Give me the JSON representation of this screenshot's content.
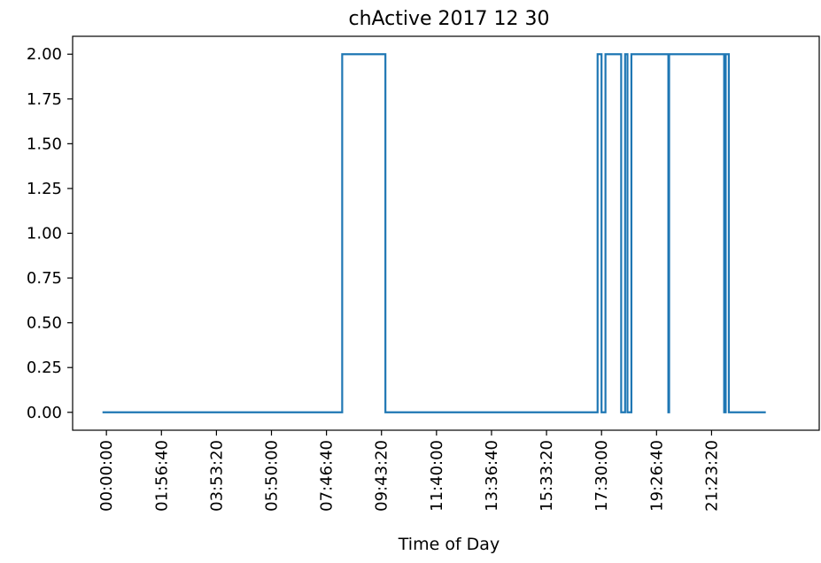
{
  "chart_data": {
    "type": "line",
    "title": "chActive 2017 12 30",
    "xlabel": "Time of Day",
    "ylabel": "",
    "x_tick_labels": [
      "00:00:00",
      "01:56:40",
      "03:53:20",
      "05:50:00",
      "07:46:40",
      "09:43:20",
      "11:40:00",
      "13:36:40",
      "15:33:20",
      "17:30:00",
      "19:26:40",
      "21:23:20"
    ],
    "x_tick_seconds": [
      0,
      7000,
      14000,
      21000,
      28000,
      35000,
      42000,
      49000,
      56000,
      63000,
      70000,
      77000
    ],
    "x_unit": "seconds since midnight",
    "xlim": [
      -4300,
      90700
    ],
    "y_tick_labels": [
      "0.00",
      "0.25",
      "0.50",
      "0.75",
      "1.00",
      "1.25",
      "1.50",
      "1.75",
      "2.00"
    ],
    "y_ticks": [
      0,
      0.25,
      0.5,
      0.75,
      1.0,
      1.25,
      1.5,
      1.75,
      2.0
    ],
    "ylim": [
      -0.1,
      2.1
    ],
    "grid": false,
    "line_color": "#1f77b4",
    "series": [
      {
        "step": true,
        "x": [
          -500,
          30000,
          30000,
          35500,
          35500,
          62500,
          62500,
          63000,
          63000,
          63500,
          63500,
          65500,
          65500,
          66000,
          66000,
          66300,
          66300,
          66800,
          66800,
          71500,
          71500,
          71600,
          71600,
          78600,
          78600,
          78800,
          78800,
          79200,
          79200,
          83900
        ],
        "y": [
          0,
          0,
          2,
          2,
          0,
          0,
          2,
          2,
          0,
          0,
          2,
          2,
          0,
          0,
          2,
          2,
          0,
          0,
          2,
          2,
          0,
          0,
          2,
          2,
          0,
          0,
          2,
          2,
          0,
          0
        ]
      }
    ]
  }
}
